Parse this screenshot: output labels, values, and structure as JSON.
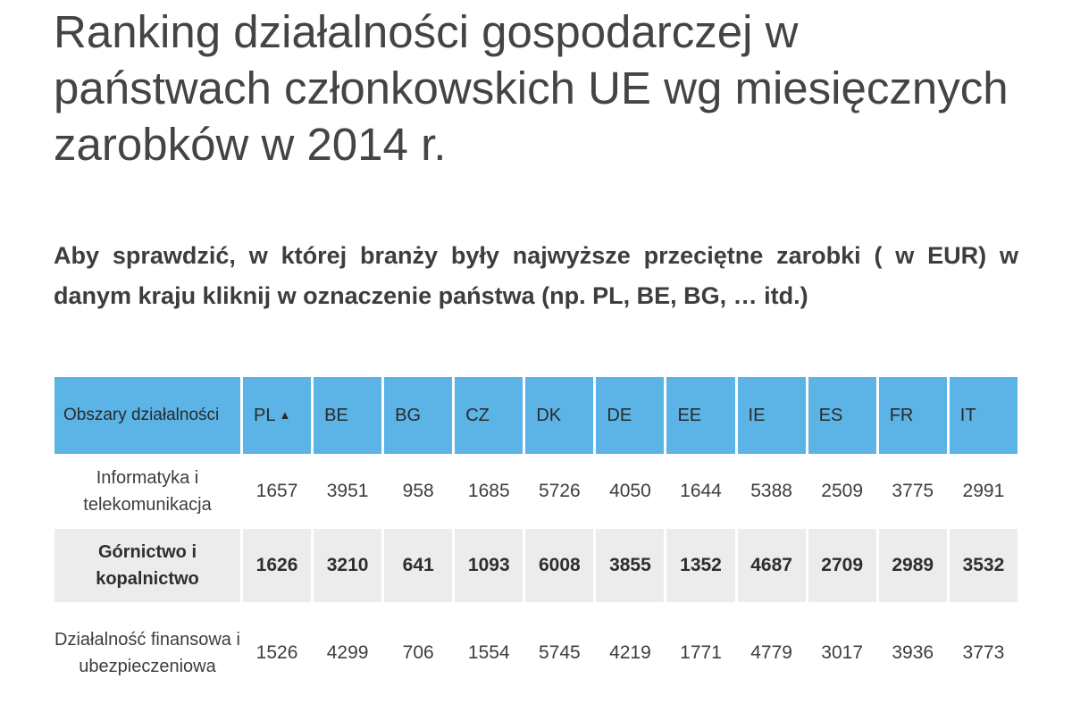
{
  "title": "Ranking działalności gospodarczej w państwach członkowskich UE wg miesięcznych zarobków w 2014 r.",
  "subtitle": "Aby sprawdzić, w której branży były najwyższe przeciętne zarobki ( w EUR) w danym kraju kliknij w oznaczenie państwa (np. PL, BE, BG, … itd.)",
  "table": {
    "header_first": "Obszary działalności",
    "header_color": "#5cb3e6",
    "sort_icon": "chevron-up-icon",
    "columns": [
      "PL",
      "BE",
      "BG",
      "CZ",
      "DK",
      "DE",
      "EE",
      "IE",
      "ES",
      "FR",
      "IT"
    ],
    "rows": [
      {
        "label": "Informatyka i telekomunikacja",
        "values": [
          "1657",
          "3951",
          "958",
          "1685",
          "5726",
          "4050",
          "1644",
          "5388",
          "2509",
          "3775",
          "2991"
        ]
      },
      {
        "label": "Górnictwo i kopalnictwo",
        "values": [
          "1626",
          "3210",
          "641",
          "1093",
          "6008",
          "3855",
          "1352",
          "4687",
          "2709",
          "2989",
          "3532"
        ]
      },
      {
        "label": "Działalność finansowa i ubezpieczeniowa",
        "values": [
          "1526",
          "4299",
          "706",
          "1554",
          "5745",
          "4219",
          "1771",
          "4779",
          "3017",
          "3936",
          "3773"
        ]
      }
    ]
  }
}
